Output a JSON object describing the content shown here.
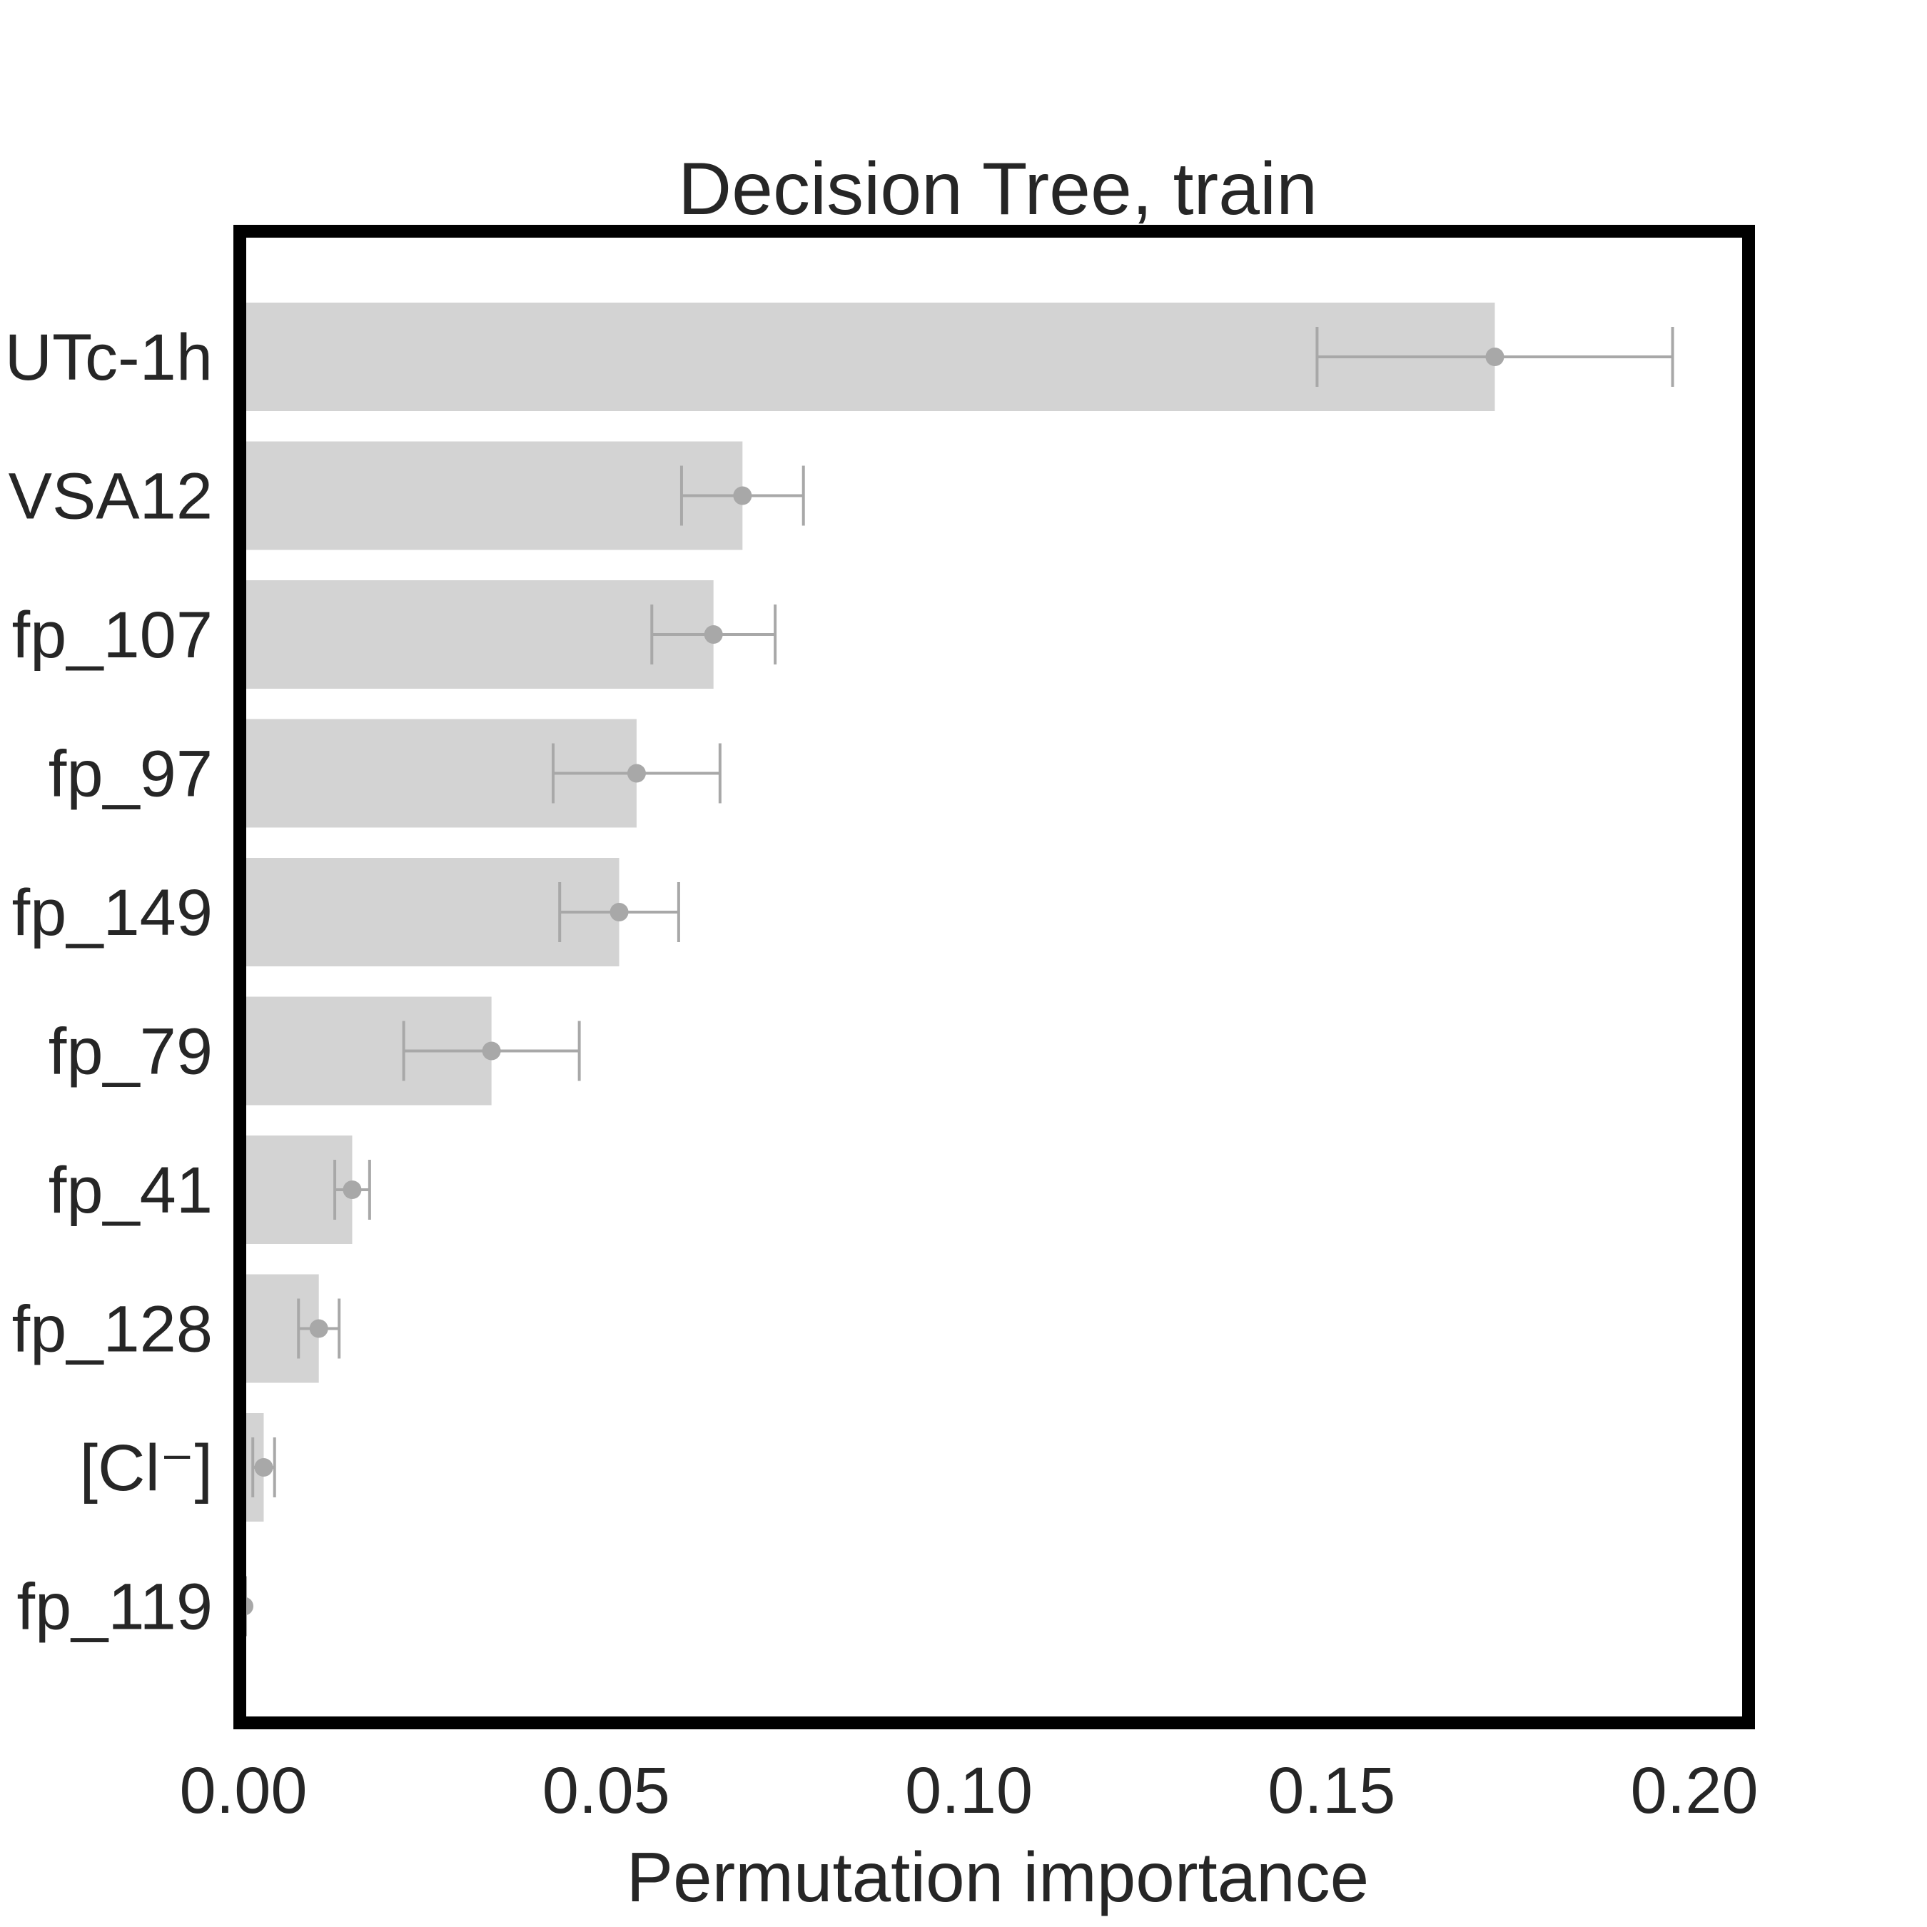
{
  "chart_data": {
    "type": "bar",
    "orientation": "horizontal",
    "title": "Decision Tree, train",
    "xlabel": "Permutation importance",
    "ylabel": "",
    "xlim": [
      0.0,
      0.207
    ],
    "xticks": [
      0.0,
      0.05,
      0.1,
      0.15,
      0.2
    ],
    "xtick_labels": [
      "0.00",
      "0.05",
      "0.10",
      "0.15",
      "0.20"
    ],
    "categories": [
      "UTc-1h",
      "VSA12",
      "fp_107",
      "fp_97",
      "fp_149",
      "fp_79",
      "fp_41",
      "fp_128",
      "[Cl⁻]",
      "fp_119"
    ],
    "values": [
      0.1725,
      0.0688,
      0.0648,
      0.0542,
      0.0518,
      0.0342,
      0.015,
      0.0104,
      0.0028,
      0.0001
    ],
    "errors": [
      0.0245,
      0.0084,
      0.0085,
      0.0115,
      0.0082,
      0.0121,
      0.0024,
      0.0028,
      0.0015,
      0.0002
    ],
    "grid": false,
    "colors": {
      "bar": "#d3d3d3",
      "error": "#a8a8a8",
      "frame": "#000000",
      "text": "#262626"
    }
  }
}
